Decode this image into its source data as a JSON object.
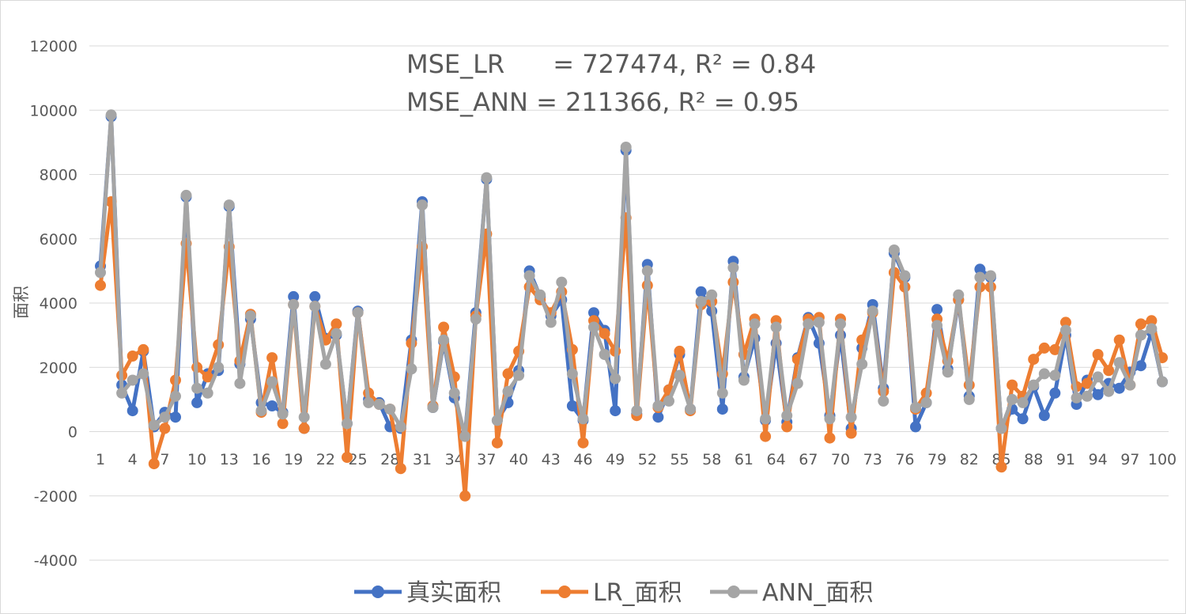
{
  "chart_data": {
    "type": "line",
    "ylabel": "面积",
    "ylim": [
      -4000,
      12000
    ],
    "y_ticks": [
      "12000",
      "10000",
      "8000",
      "6000",
      "4000",
      "2000",
      "0",
      "-2000",
      "-4000"
    ],
    "x": [
      1,
      2,
      3,
      4,
      5,
      6,
      7,
      8,
      9,
      10,
      11,
      12,
      13,
      14,
      15,
      16,
      17,
      18,
      19,
      20,
      21,
      22,
      23,
      24,
      25,
      26,
      27,
      28,
      29,
      30,
      31,
      32,
      33,
      34,
      35,
      36,
      37,
      38,
      39,
      40,
      41,
      42,
      43,
      44,
      45,
      46,
      47,
      48,
      49,
      50,
      51,
      52,
      53,
      54,
      55,
      56,
      57,
      58,
      59,
      60,
      61,
      62,
      63,
      64,
      65,
      66,
      67,
      68,
      69,
      70,
      71,
      72,
      73,
      74,
      75,
      76,
      77,
      78,
      79,
      80,
      81,
      82,
      83,
      84,
      85,
      86,
      87,
      88,
      89,
      90,
      91,
      92,
      93,
      94,
      95,
      96,
      97,
      98,
      99,
      100
    ],
    "x_tick_labels": [
      "1",
      "4",
      "7",
      "10",
      "13",
      "16",
      "19",
      "22",
      "25",
      "28",
      "31",
      "34",
      "37",
      "40",
      "43",
      "46",
      "49",
      "52",
      "55",
      "58",
      "61",
      "64",
      "67",
      "70",
      "73",
      "76",
      "79",
      "82",
      "85",
      "88",
      "91",
      "94",
      "97",
      "100"
    ],
    "grid": true,
    "legend_position": "bottom",
    "annotations": [
      "MSE_LR      = 727474, R² = 0.84",
      "MSE_ANN = 211366, R² = 0.95"
    ],
    "series": [
      {
        "name": "真实面积",
        "color": "#4472c4",
        "values": [
          5150,
          9800,
          1450,
          650,
          2500,
          150,
          600,
          450,
          7300,
          900,
          1800,
          1900,
          7000,
          2100,
          3500,
          900,
          800,
          600,
          4200,
          100,
          4200,
          2900,
          3000,
          250,
          3750,
          1000,
          900,
          150,
          100,
          2850,
          7150,
          750,
          2800,
          1050,
          -100,
          3700,
          7850,
          350,
          900,
          1900,
          5000,
          4200,
          3600,
          4100,
          800,
          350,
          3700,
          3150,
          650,
          8750,
          550,
          5200,
          450,
          1300,
          2400,
          700,
          4350,
          3750,
          700,
          5300,
          1700,
          2900,
          350,
          2750,
          300,
          2300,
          3550,
          2750,
          500,
          3000,
          100,
          2600,
          3950,
          1350,
          5550,
          4800,
          150,
          900,
          3800,
          1950,
          4100,
          1100,
          5050,
          4800,
          100,
          700,
          400,
          1400,
          500,
          1200,
          3000,
          850,
          1600,
          1150,
          1500,
          1350,
          1850,
          2050,
          3100,
          1550
        ]
      },
      {
        "name": "LR_面积",
        "color": "#ed7d31",
        "values": [
          4550,
          7150,
          1750,
          2350,
          2550,
          -1000,
          100,
          1600,
          5850,
          2000,
          1700,
          2700,
          5750,
          2200,
          3650,
          600,
          2300,
          250,
          3950,
          100,
          3900,
          2850,
          3350,
          -800,
          3700,
          1200,
          850,
          700,
          -1150,
          2750,
          5750,
          800,
          3250,
          1700,
          -2000,
          3600,
          6150,
          -350,
          1800,
          2500,
          4500,
          4100,
          3700,
          4350,
          2550,
          -350,
          3450,
          3050,
          2500,
          6650,
          500,
          4550,
          750,
          1300,
          2500,
          650,
          3950,
          4050,
          1800,
          4650,
          2400,
          3500,
          -150,
          3450,
          150,
          2250,
          3500,
          3550,
          -200,
          3500,
          -50,
          2850,
          3700,
          1250,
          4950,
          4500,
          700,
          1200,
          3500,
          2200,
          4100,
          1450,
          4500,
          4500,
          -1100,
          1450,
          1100,
          2250,
          2600,
          2550,
          3400,
          1400,
          1500,
          2400,
          1900,
          2850,
          1450,
          3350,
          3450,
          2300
        ]
      },
      {
        "name": "ANN_面积",
        "color": "#a5a5a5",
        "values": [
          4950,
          9850,
          1200,
          1600,
          1800,
          200,
          450,
          1100,
          7350,
          1350,
          1200,
          2000,
          7050,
          1500,
          3600,
          650,
          1550,
          550,
          3950,
          450,
          3900,
          2100,
          3050,
          250,
          3700,
          900,
          850,
          700,
          150,
          1950,
          7050,
          750,
          2850,
          1200,
          -150,
          3500,
          7900,
          350,
          1250,
          1750,
          4850,
          4250,
          3400,
          4650,
          1800,
          400,
          3250,
          2400,
          1650,
          8850,
          650,
          5000,
          800,
          950,
          1750,
          700,
          4050,
          4250,
          1200,
          5100,
          1600,
          3350,
          400,
          3250,
          500,
          1500,
          3350,
          3400,
          400,
          3350,
          450,
          2100,
          3750,
          950,
          5650,
          4850,
          750,
          900,
          3300,
          1850,
          4250,
          1000,
          4800,
          4850,
          100,
          1000,
          900,
          1450,
          1800,
          1750,
          3150,
          1050,
          1100,
          1700,
          1250,
          2150,
          1450,
          3000,
          3200,
          1550
        ]
      }
    ]
  }
}
